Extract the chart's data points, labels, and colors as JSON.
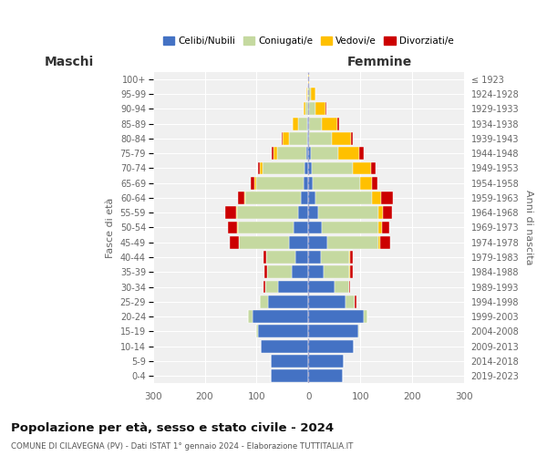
{
  "age_groups": [
    "0-4",
    "5-9",
    "10-14",
    "15-19",
    "20-24",
    "25-29",
    "30-34",
    "35-39",
    "40-44",
    "45-49",
    "50-54",
    "55-59",
    "60-64",
    "65-69",
    "70-74",
    "75-79",
    "80-84",
    "85-89",
    "90-94",
    "95-99",
    "100+"
  ],
  "birth_years": [
    "2019-2023",
    "2014-2018",
    "2009-2013",
    "2004-2008",
    "1999-2003",
    "1994-1998",
    "1989-1993",
    "1984-1988",
    "1979-1983",
    "1974-1978",
    "1969-1973",
    "1964-1968",
    "1959-1963",
    "1954-1958",
    "1949-1953",
    "1944-1948",
    "1939-1943",
    "1934-1938",
    "1929-1933",
    "1924-1928",
    "≤ 1923"
  ],
  "maschi": {
    "celibi": [
      72,
      72,
      92,
      98,
      108,
      78,
      58,
      33,
      26,
      38,
      28,
      20,
      14,
      9,
      7,
      4,
      2,
      2,
      0,
      0,
      0
    ],
    "coniugati": [
      0,
      0,
      0,
      2,
      8,
      16,
      26,
      46,
      56,
      96,
      108,
      118,
      108,
      92,
      82,
      56,
      36,
      18,
      5,
      2,
      0
    ],
    "vedovi": [
      0,
      0,
      0,
      0,
      0,
      0,
      0,
      0,
      0,
      1,
      2,
      2,
      2,
      3,
      5,
      8,
      12,
      10,
      5,
      2,
      0
    ],
    "divorziati": [
      0,
      0,
      0,
      0,
      0,
      0,
      2,
      6,
      5,
      16,
      18,
      20,
      12,
      8,
      4,
      3,
      2,
      0,
      0,
      0,
      0
    ]
  },
  "femmine": {
    "nubili": [
      66,
      68,
      88,
      96,
      106,
      72,
      50,
      30,
      24,
      36,
      26,
      18,
      13,
      9,
      6,
      4,
      2,
      2,
      1,
      0,
      0
    ],
    "coniugate": [
      0,
      0,
      0,
      2,
      8,
      18,
      28,
      48,
      55,
      98,
      108,
      116,
      110,
      90,
      80,
      54,
      44,
      24,
      12,
      5,
      0
    ],
    "vedove": [
      0,
      0,
      0,
      0,
      0,
      0,
      0,
      2,
      2,
      4,
      8,
      10,
      18,
      24,
      35,
      40,
      36,
      30,
      20,
      8,
      1
    ],
    "divorziate": [
      0,
      0,
      0,
      0,
      0,
      2,
      2,
      5,
      4,
      20,
      14,
      18,
      22,
      10,
      8,
      8,
      4,
      4,
      2,
      0,
      0
    ]
  },
  "colors": {
    "celibi": "#4472c4",
    "coniugati": "#c5d9a0",
    "vedovi": "#ffc000",
    "divorziati": "#cc0000"
  },
  "xlim": 300,
  "title": "Popolazione per età, sesso e stato civile - 2024",
  "subtitle": "COMUNE DI CILAVEGNA (PV) - Dati ISTAT 1° gennaio 2024 - Elaborazione TUTTITALIA.IT",
  "ylabel_left": "Fasce di età",
  "ylabel_right": "Anni di nascita",
  "xlabel_left": "Maschi",
  "xlabel_right": "Femmine",
  "legend_labels": [
    "Celibi/Nubili",
    "Coniugati/e",
    "Vedovi/e",
    "Divorziati/e"
  ],
  "background_color": "#ffffff",
  "plot_bg_color": "#f0f0f0",
  "grid_color": "#ffffff",
  "bar_height": 0.85
}
